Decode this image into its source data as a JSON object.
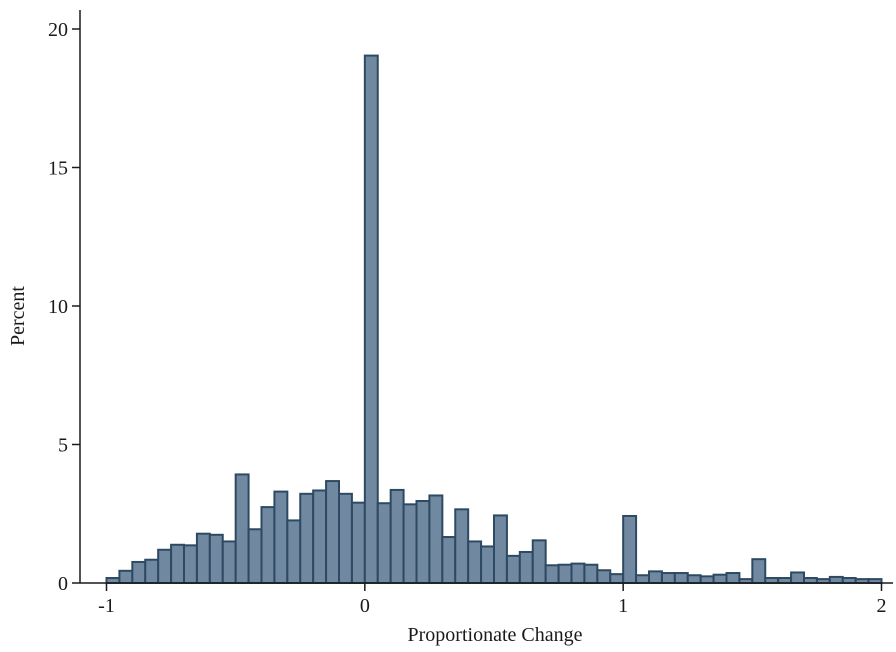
{
  "chart_data": {
    "type": "bar",
    "title": "",
    "xlabel": "Proportionate Change",
    "ylabel": "Percent",
    "xlim": [
      -1.0,
      2.0
    ],
    "ylim": [
      0,
      20
    ],
    "bin_width": 0.05,
    "x_ticks": [
      -1,
      0,
      1,
      2
    ],
    "x_tick_labels": [
      "-1",
      "0",
      "1",
      "2"
    ],
    "y_ticks": [
      0,
      5,
      10,
      15,
      20
    ],
    "y_tick_labels": [
      "0",
      "5",
      "10",
      "15",
      "20"
    ],
    "grid": false,
    "bar_fill": "#7088a0",
    "bar_stroke": "#2e4a62",
    "axis_color": "#1a1a1a",
    "x": [
      -1.0,
      -0.95,
      -0.9,
      -0.85,
      -0.8,
      -0.75,
      -0.7,
      -0.65,
      -0.6,
      -0.55,
      -0.5,
      -0.45,
      -0.4,
      -0.35,
      -0.3,
      -0.25,
      -0.2,
      -0.15,
      -0.1,
      -0.05,
      0.0,
      0.05,
      0.1,
      0.15,
      0.2,
      0.25,
      0.3,
      0.35,
      0.4,
      0.45,
      0.5,
      0.55,
      0.6,
      0.65,
      0.7,
      0.75,
      0.8,
      0.85,
      0.9,
      0.95,
      1.0,
      1.05,
      1.1,
      1.15,
      1.2,
      1.25,
      1.3,
      1.35,
      1.4,
      1.45,
      1.5,
      1.55,
      1.6,
      1.65,
      1.7,
      1.75,
      1.8,
      1.85,
      1.9,
      1.95
    ],
    "values": [
      0.18,
      0.44,
      0.76,
      0.84,
      1.2,
      1.38,
      1.36,
      1.78,
      1.74,
      1.5,
      3.92,
      1.94,
      2.74,
      3.3,
      2.26,
      3.22,
      3.34,
      3.68,
      3.22,
      2.9,
      19.04,
      2.88,
      3.36,
      2.84,
      2.96,
      3.16,
      1.66,
      2.66,
      1.5,
      1.32,
      2.44,
      0.98,
      1.12,
      1.54,
      0.64,
      0.66,
      0.7,
      0.66,
      0.46,
      0.32,
      2.42,
      0.28,
      0.42,
      0.36,
      0.36,
      0.28,
      0.24,
      0.3,
      0.36,
      0.14,
      0.86,
      0.18,
      0.18,
      0.38,
      0.18,
      0.14,
      0.22,
      0.18,
      0.14,
      0.14
    ]
  }
}
